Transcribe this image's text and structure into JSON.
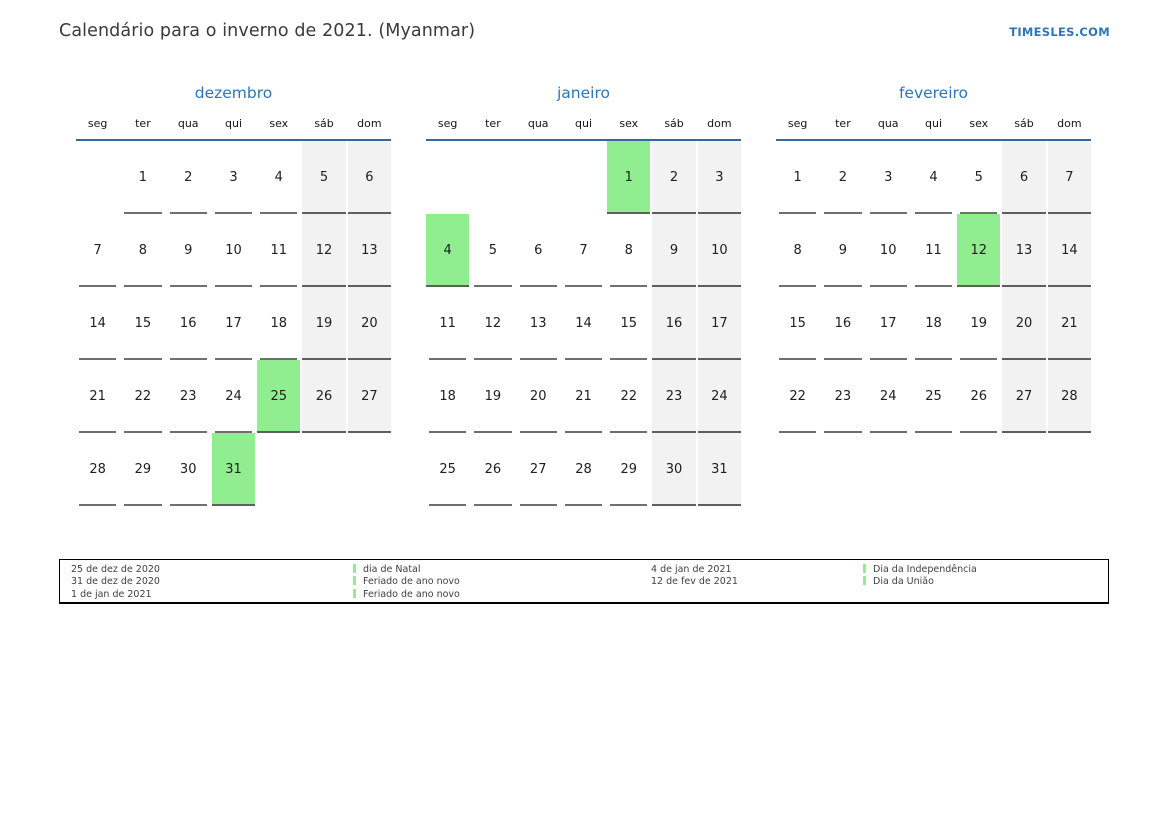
{
  "header": {
    "title": "Calendário para o inverno de 2021. (Myanmar)",
    "site": "TIMESLES.COM"
  },
  "weekdays": [
    "seg",
    "ter",
    "qua",
    "qui",
    "sex",
    "sáb",
    "dom"
  ],
  "weekend_columns": [
    5,
    6
  ],
  "months": [
    {
      "name": "dezembro",
      "weeks": [
        [
          "",
          1,
          2,
          3,
          4,
          5,
          6
        ],
        [
          7,
          8,
          9,
          10,
          11,
          12,
          13
        ],
        [
          14,
          15,
          16,
          17,
          18,
          19,
          20
        ],
        [
          21,
          22,
          23,
          24,
          25,
          26,
          27
        ],
        [
          28,
          29,
          30,
          31,
          "",
          "",
          ""
        ]
      ],
      "highlighted": [
        25,
        31
      ]
    },
    {
      "name": "janeiro",
      "weeks": [
        [
          "",
          "",
          "",
          "",
          1,
          2,
          3
        ],
        [
          4,
          5,
          6,
          7,
          8,
          9,
          10
        ],
        [
          11,
          12,
          13,
          14,
          15,
          16,
          17
        ],
        [
          18,
          19,
          20,
          21,
          22,
          23,
          24
        ],
        [
          25,
          26,
          27,
          28,
          29,
          30,
          31
        ]
      ],
      "highlighted": [
        1,
        4
      ]
    },
    {
      "name": "fevereiro",
      "weeks": [
        [
          1,
          2,
          3,
          4,
          5,
          6,
          7
        ],
        [
          8,
          9,
          10,
          11,
          12,
          13,
          14
        ],
        [
          15,
          16,
          17,
          18,
          19,
          20,
          21
        ],
        [
          22,
          23,
          24,
          25,
          26,
          27,
          28
        ]
      ],
      "highlighted": [
        12
      ]
    }
  ],
  "legend": {
    "groups": [
      {
        "dates": [
          "25 de dez de 2020",
          "31 de dez de 2020",
          "1 de jan de 2021"
        ],
        "holidays": [
          "dia de Natal",
          "Feriado de ano novo",
          "Feriado de ano novo"
        ]
      },
      {
        "dates": [
          "4 de jan de 2021",
          "12 de fev de 2021"
        ],
        "holidays": [
          "Dia da Independência",
          "Dia da União"
        ]
      }
    ]
  },
  "colors": {
    "accent_blue": "#2e75b6",
    "header_line": "#35679d",
    "holiday_green": "#90ee90",
    "weekend_gray": "#f2f2f2",
    "underline_gray": "#6f6f6f"
  }
}
